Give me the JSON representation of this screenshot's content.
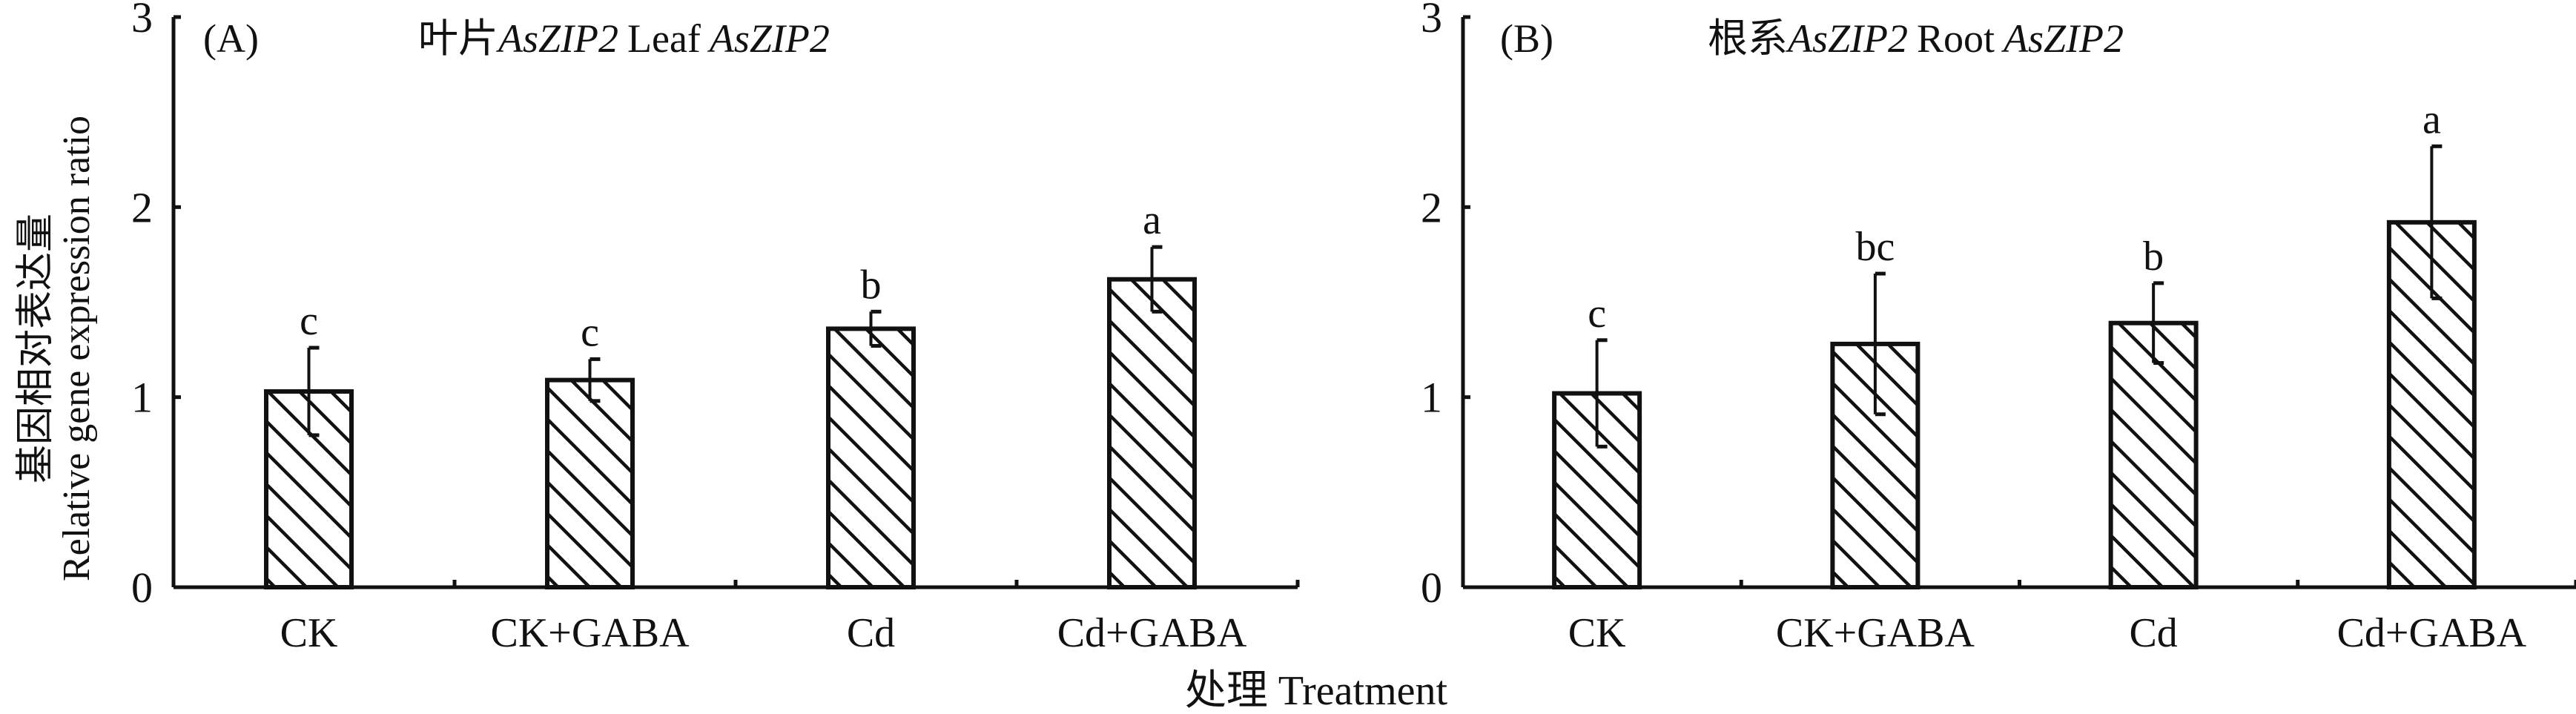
{
  "y_axis_label_cn": "基因相对表达量",
  "y_axis_label_en": "Relative gene expression ratio",
  "x_axis_label": "处理 Treatment",
  "chart_data": [
    {
      "type": "bar",
      "panel": "(A)",
      "title_cn": "叶片",
      "title_gene": "AsZIP2",
      "title_en": "Leaf",
      "categories": [
        "CK",
        "CK+GABA",
        "Cd",
        "Cd+GABA"
      ],
      "values": [
        1.03,
        1.09,
        1.36,
        1.62
      ],
      "errors": [
        0.23,
        0.11,
        0.09,
        0.17
      ],
      "letters": [
        "c",
        "c",
        "b",
        "a"
      ],
      "ylim": [
        0,
        3
      ],
      "yticks": [
        "0",
        "1",
        "2",
        "3"
      ],
      "pattern": "diagonal-hatch"
    },
    {
      "type": "bar",
      "panel": "(B)",
      "title_cn": "根系",
      "title_gene": "AsZIP2",
      "title_en": "Root",
      "categories": [
        "CK",
        "CK+GABA",
        "Cd",
        "Cd+GABA"
      ],
      "values": [
        1.02,
        1.28,
        1.39,
        1.92
      ],
      "errors": [
        0.28,
        0.37,
        0.21,
        0.4
      ],
      "letters": [
        "c",
        "bc",
        "b",
        "a"
      ],
      "ylim": [
        0,
        3
      ],
      "yticks": [
        "0",
        "1",
        "2",
        "3"
      ],
      "pattern": "diagonal-hatch"
    }
  ]
}
